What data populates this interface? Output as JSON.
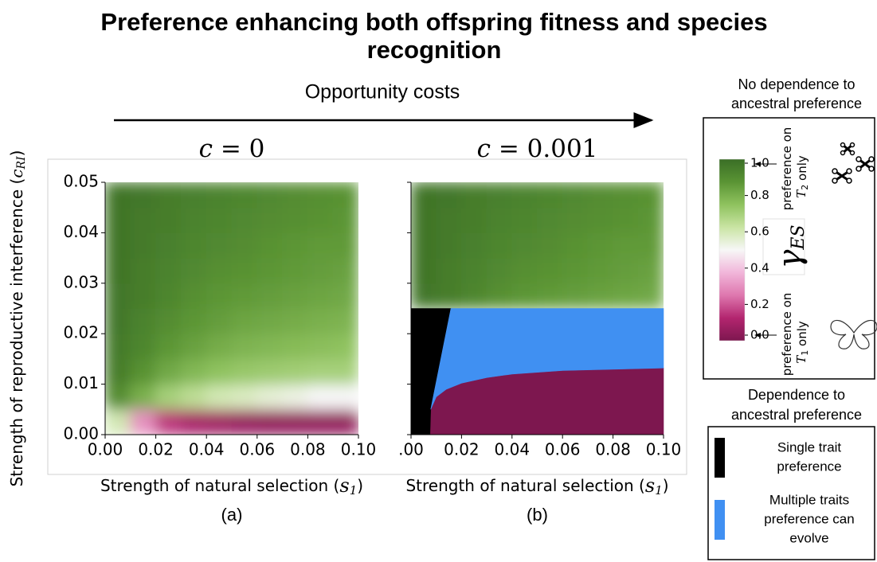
{
  "figure": {
    "title": [
      "Preference enhancing both offspring fitness and species",
      "recognition"
    ],
    "subtitle": "Opportunity costs",
    "ylabel": [
      "Strength of reproductive interference (",
      "c",
      "RI",
      ")"
    ]
  },
  "chart_data": [
    {
      "type": "heatmap",
      "title": [
        "c",
        " = 0"
      ],
      "caption": "(a)",
      "xlabel": [
        "Strength of natural selection (",
        "s",
        "1",
        ")"
      ],
      "xlim": [
        0,
        0.1
      ],
      "ylim": [
        0,
        0.05
      ],
      "xticks": [
        {
          "value": 0,
          "label": "0.00"
        },
        0.02,
        0.04,
        0.06,
        0.08,
        {
          "value": 0.1,
          "label": "0.10"
        }
      ],
      "yticks": [
        {
          "value": 0,
          "label": "0.00"
        },
        0.01,
        0.02,
        0.03,
        0.04,
        0.05
      ],
      "ytick_labels": true,
      "z": [
        [
          0.6,
          0.3,
          0.15,
          0.1,
          0.08,
          0.06,
          0.05,
          0.05,
          0.05,
          0.05
        ],
        [
          0.9,
          0.8,
          0.7,
          0.65,
          0.6,
          0.58,
          0.55,
          0.53,
          0.5,
          0.5
        ],
        [
          0.95,
          0.88,
          0.82,
          0.78,
          0.75,
          0.73,
          0.72,
          0.71,
          0.7,
          0.7
        ],
        [
          0.96,
          0.92,
          0.87,
          0.84,
          0.81,
          0.79,
          0.78,
          0.77,
          0.76,
          0.75
        ],
        [
          0.97,
          0.93,
          0.9,
          0.87,
          0.85,
          0.83,
          0.82,
          0.81,
          0.8,
          0.79
        ],
        [
          0.97,
          0.95,
          0.92,
          0.89,
          0.87,
          0.86,
          0.85,
          0.84,
          0.83,
          0.82
        ],
        [
          0.98,
          0.95,
          0.93,
          0.91,
          0.89,
          0.88,
          0.87,
          0.86,
          0.85,
          0.84
        ],
        [
          0.98,
          0.96,
          0.94,
          0.92,
          0.91,
          0.9,
          0.88,
          0.87,
          0.86,
          0.86
        ],
        [
          0.98,
          0.96,
          0.95,
          0.93,
          0.92,
          0.91,
          0.9,
          0.89,
          0.88,
          0.87
        ],
        [
          0.98,
          0.97,
          0.95,
          0.94,
          0.93,
          0.92,
          0.91,
          0.9,
          0.89,
          0.88
        ]
      ],
      "regions": []
    },
    {
      "type": "heatmap",
      "title": [
        "c",
        " = 0.001"
      ],
      "caption": "(b)",
      "xlabel": [
        "Strength of natural selection (",
        "s",
        "1",
        ")"
      ],
      "xlim": [
        0,
        0.1
      ],
      "ylim": [
        0,
        0.05
      ],
      "xticks": [
        {
          "value": 0,
          "label": ".00"
        },
        0.02,
        0.04,
        0.06,
        0.08,
        {
          "value": 0.1,
          "label": "0.10"
        }
      ],
      "yticks": [
        0,
        0.01,
        0.02,
        0.03,
        0.04,
        0.05
      ],
      "ytick_labels": false,
      "z": [
        [
          null,
          null,
          null,
          null,
          null,
          null,
          null,
          null,
          null,
          null
        ],
        [
          null,
          null,
          null,
          null,
          null,
          null,
          null,
          null,
          null,
          null
        ],
        [
          null,
          null,
          null,
          null,
          null,
          null,
          null,
          null,
          null,
          null
        ],
        [
          null,
          null,
          null,
          null,
          null,
          null,
          null,
          null,
          null,
          null
        ],
        [
          null,
          null,
          null,
          null,
          null,
          null,
          null,
          null,
          null,
          null
        ],
        [
          0.97,
          0.95,
          0.92,
          0.89,
          0.87,
          0.86,
          0.85,
          0.84,
          0.83,
          0.82
        ],
        [
          0.98,
          0.95,
          0.93,
          0.91,
          0.89,
          0.88,
          0.87,
          0.86,
          0.85,
          0.84
        ],
        [
          0.98,
          0.96,
          0.94,
          0.92,
          0.91,
          0.9,
          0.88,
          0.87,
          0.86,
          0.86
        ],
        [
          0.98,
          0.96,
          0.95,
          0.93,
          0.92,
          0.91,
          0.9,
          0.89,
          0.88,
          0.87
        ],
        [
          0.98,
          0.97,
          0.95,
          0.94,
          0.93,
          0.92,
          0.91,
          0.9,
          0.89,
          0.88
        ]
      ],
      "regions": [
        {
          "value": 0,
          "points": [
            [
              0.0075,
              0
            ],
            [
              0.1,
              0
            ],
            [
              0.1,
              0.0132
            ],
            [
              0.06,
              0.0127
            ],
            [
              0.04,
              0.012
            ],
            [
              0.03,
              0.0113
            ],
            [
              0.02,
              0.0102
            ],
            [
              0.014,
              0.009
            ],
            [
              0.01,
              0.0075
            ],
            [
              0.0078,
              0.005
            ]
          ]
        },
        {
          "name": [
            "Single trait",
            "preference"
          ],
          "color": "#000000",
          "points": [
            [
              0,
              0
            ],
            [
              0.0075,
              0
            ],
            [
              0.0078,
              0.005
            ],
            [
              0.0158,
              0.025
            ],
            [
              0,
              0.025
            ]
          ]
        },
        {
          "name": [
            "Multiple traits",
            "preference can",
            "evolve"
          ],
          "color": "#4090f2",
          "points": [
            [
              0.0078,
              0.005
            ],
            [
              0.01,
              0.0075
            ],
            [
              0.014,
              0.009
            ],
            [
              0.02,
              0.0102
            ],
            [
              0.03,
              0.0113
            ],
            [
              0.04,
              0.012
            ],
            [
              0.06,
              0.0127
            ],
            [
              0.1,
              0.0132
            ],
            [
              0.1,
              0.025
            ],
            [
              0.0158,
              0.025
            ]
          ]
        }
      ]
    }
  ],
  "colorbar": {
    "label": [
      "γ",
      "ES"
    ],
    "lim": [
      0,
      1
    ],
    "ticks": [
      {
        "value": 0,
        "label": "0.0"
      },
      0.2,
      0.4,
      0.6,
      0.8,
      {
        "value": 1,
        "label": "1.0"
      }
    ],
    "colormap": [
      "#7d174f",
      "#b3256f",
      "#de77ae",
      "#f1b6da",
      "#f7f7f7",
      "#c9e4a3",
      "#8fc25e",
      "#5a9434",
      "#3a6e26"
    ],
    "top_note": [
      "preference on",
      "T",
      "2",
      " only"
    ],
    "bottom_note": [
      "preference on",
      "T",
      "1",
      " only"
    ]
  },
  "panel_headers": {
    "independent": [
      "No dependence to",
      "ancestral preference"
    ],
    "dependent": [
      "Dependence to",
      "ancestral preference"
    ]
  }
}
